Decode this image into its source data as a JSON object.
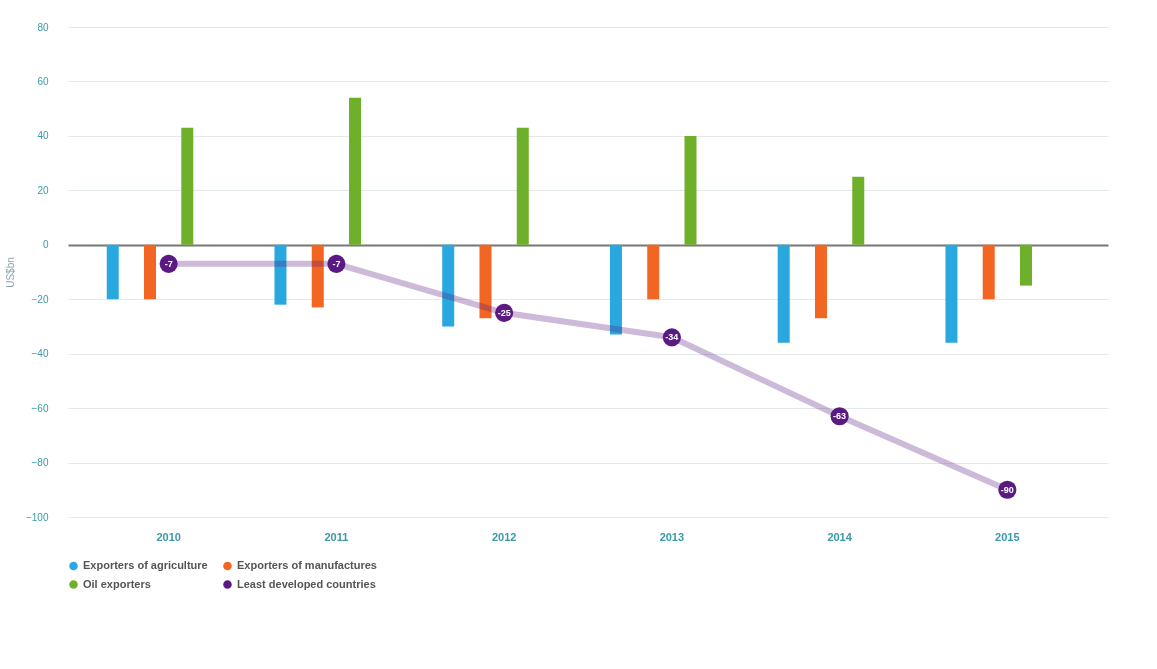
{
  "chart_data": {
    "type": "bar",
    "ylabel": "US$bn",
    "categories": [
      "2010",
      "2011",
      "2012",
      "2013",
      "2014",
      "2015"
    ],
    "series": [
      {
        "name": "Exporters of agriculture",
        "color": "#29a8e0",
        "values": [
          -20,
          -22,
          -30,
          -33,
          -36,
          -36
        ]
      },
      {
        "name": "Exporters of manufactures",
        "color": "#f26522",
        "values": [
          -20,
          -23,
          -27,
          -20,
          -27,
          -20
        ]
      },
      {
        "name": "Oil exporters",
        "color": "#6fb02a",
        "values": [
          43,
          54,
          43,
          40,
          25,
          -15
        ]
      },
      {
        "name": "Least developed countries",
        "type": "line",
        "color": "#5b1a82",
        "values": [
          -7,
          -7,
          -25,
          -34,
          -63,
          -90
        ],
        "value_labels": [
          "-7",
          "-7",
          "-25",
          "-34",
          "-63",
          "-90"
        ]
      }
    ],
    "ylim": [
      -100,
      80
    ],
    "yticks": [
      -100,
      -80,
      -60,
      -40,
      -20,
      0,
      20,
      40,
      60,
      80
    ],
    "grid": "y",
    "legend": "bottom left",
    "marker": "circle"
  }
}
